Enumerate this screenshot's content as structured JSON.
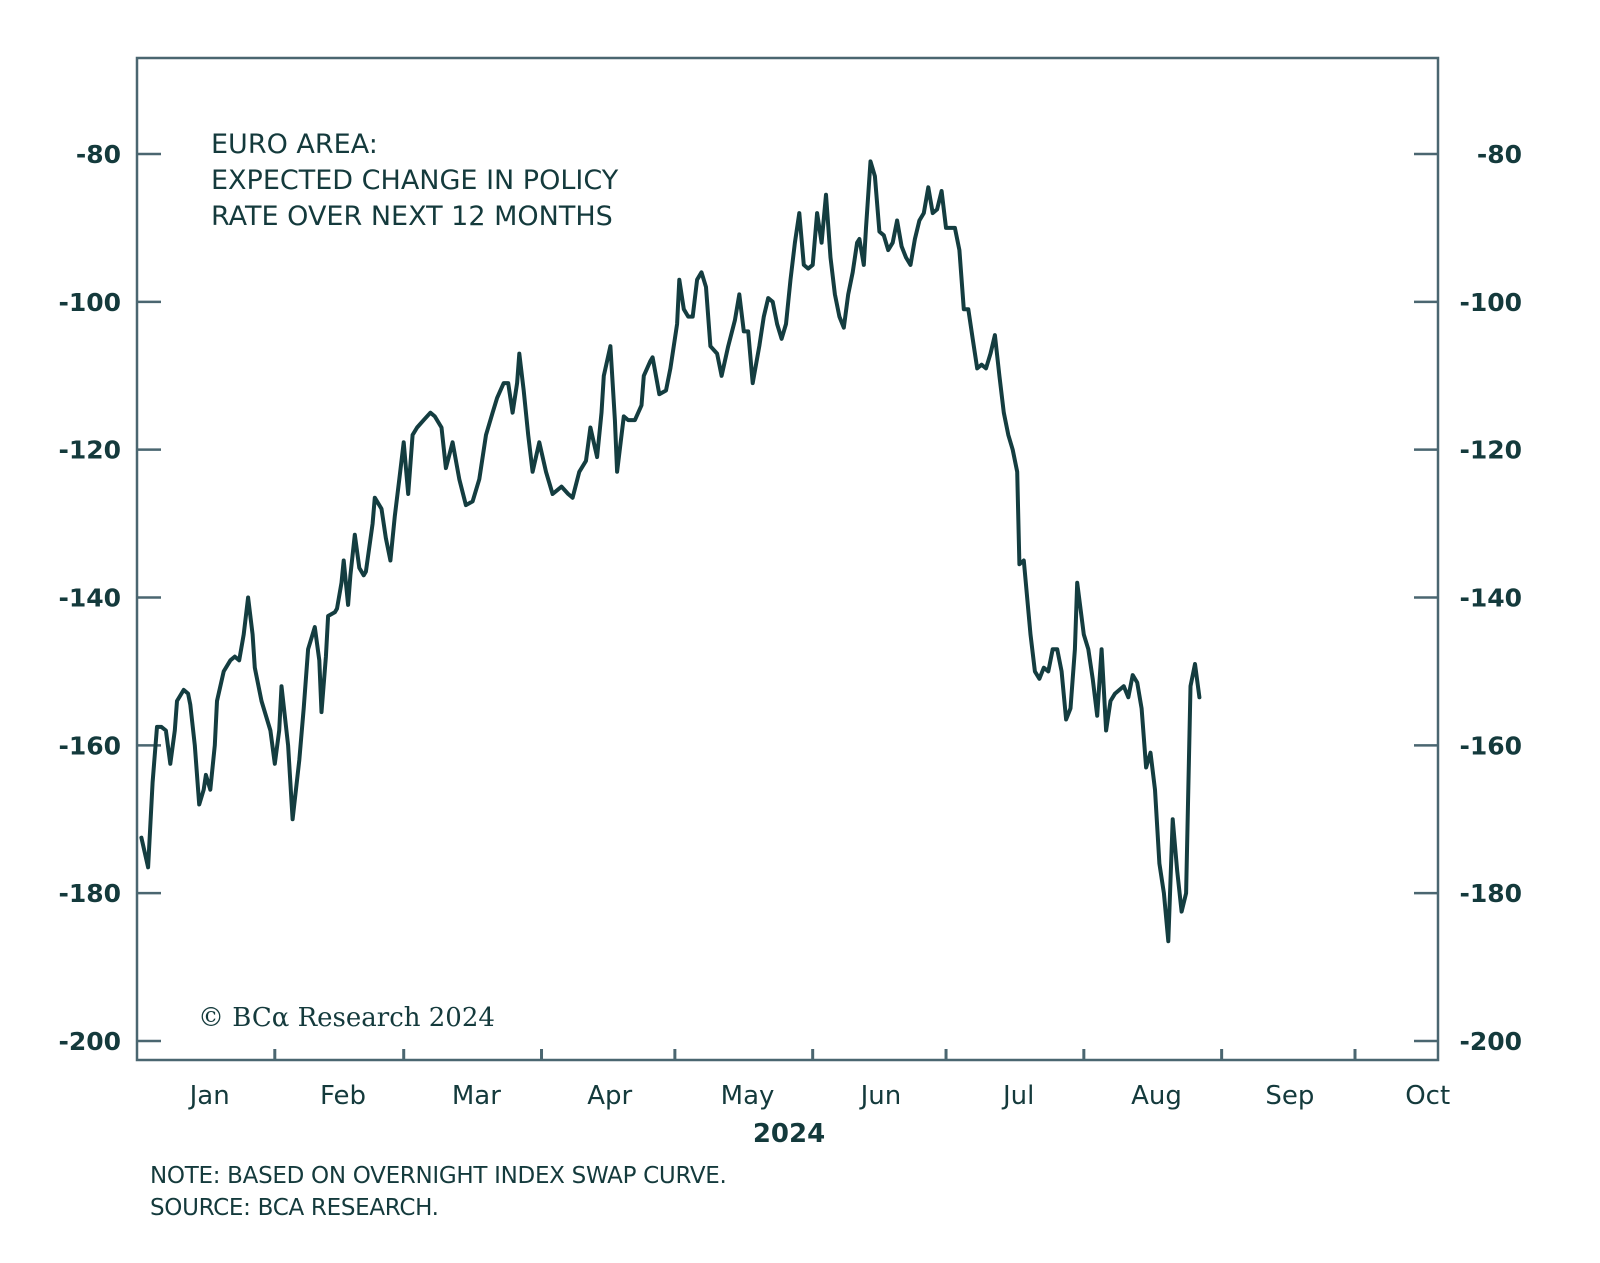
{
  "chart_data": {
    "type": "line",
    "title_lines": [
      "EURO AREA:",
      "EXPECTED CHANGE IN POLICY",
      "RATE OVER NEXT 12 MONTHS"
    ],
    "xlabel": "2024",
    "ylabel": "",
    "x_unit": "days since 2024-01-01",
    "xlim": [
      0,
      290
    ],
    "ylim": [
      -203,
      -66
    ],
    "yticks": [
      -80,
      -100,
      -120,
      -140,
      -160,
      -180,
      -200
    ],
    "ytick_labels": [
      "-80",
      "-100",
      "-120",
      "-140",
      "-160",
      "-180",
      "-200"
    ],
    "secondary_y_axis": true,
    "x_tick_days": [
      31,
      60,
      91,
      121,
      152,
      182,
      213,
      244,
      274
    ],
    "months": [
      {
        "label": "Jan",
        "day": 15
      },
      {
        "label": "Feb",
        "day": 45
      },
      {
        "label": "Mar",
        "day": 75
      },
      {
        "label": "Apr",
        "day": 105
      },
      {
        "label": "May",
        "day": 136
      },
      {
        "label": "Jun",
        "day": 166
      },
      {
        "label": "Jul",
        "day": 197
      },
      {
        "label": "Aug",
        "day": 228
      },
      {
        "label": "Sep",
        "day": 258
      },
      {
        "label": "Oct",
        "day": 289
      }
    ],
    "grid": false,
    "legend": "none",
    "line_color": "#143d40",
    "series": [
      {
        "name": "Expected change in policy rate over next 12 months (bps)",
        "points": [
          [
            1,
            -172.5
          ],
          [
            2.5,
            -176.5
          ],
          [
            3.5,
            -165
          ],
          [
            4.5,
            -157.5
          ],
          [
            5.5,
            -157.5
          ],
          [
            6.5,
            -158
          ],
          [
            7.5,
            -162.5
          ],
          [
            8.5,
            -158
          ],
          [
            9,
            -154
          ],
          [
            10.5,
            -152.5
          ],
          [
            11.5,
            -153
          ],
          [
            12,
            -154.5
          ],
          [
            13,
            -160
          ],
          [
            14,
            -168
          ],
          [
            15,
            -166
          ],
          [
            15.5,
            -164
          ],
          [
            16.5,
            -166
          ],
          [
            17.5,
            -160
          ],
          [
            18,
            -154
          ],
          [
            19.5,
            -150
          ],
          [
            21,
            -148.5
          ],
          [
            22,
            -148
          ],
          [
            23,
            -148.5
          ],
          [
            24,
            -145
          ],
          [
            25,
            -140
          ],
          [
            26,
            -145
          ],
          [
            26.5,
            -149.5
          ],
          [
            28,
            -154
          ],
          [
            30,
            -158
          ],
          [
            31,
            -162.5
          ],
          [
            32,
            -158
          ],
          [
            32.5,
            -152
          ],
          [
            34,
            -160
          ],
          [
            35,
            -170
          ],
          [
            36.5,
            -162
          ],
          [
            37.5,
            -155
          ],
          [
            38.5,
            -147
          ],
          [
            40,
            -144
          ],
          [
            41,
            -148.5
          ],
          [
            41.5,
            -155.5
          ],
          [
            42.5,
            -148
          ],
          [
            43,
            -142.5
          ],
          [
            44.5,
            -142
          ],
          [
            45,
            -141.5
          ],
          [
            46,
            -138
          ],
          [
            46.5,
            -135
          ],
          [
            47.5,
            -141
          ],
          [
            48,
            -137
          ],
          [
            49,
            -131.5
          ],
          [
            50,
            -136
          ],
          [
            51,
            -137
          ],
          [
            51.5,
            -136.5
          ],
          [
            53,
            -130
          ],
          [
            53.5,
            -126.5
          ],
          [
            55,
            -128
          ],
          [
            56,
            -132
          ],
          [
            57,
            -135
          ],
          [
            58,
            -129
          ],
          [
            59,
            -124
          ],
          [
            60,
            -119
          ],
          [
            61,
            -126
          ],
          [
            62,
            -118
          ],
          [
            63,
            -117
          ],
          [
            64.5,
            -116
          ],
          [
            66,
            -115
          ],
          [
            67,
            -115.5
          ],
          [
            68.5,
            -117
          ],
          [
            69.5,
            -122.5
          ],
          [
            71,
            -119
          ],
          [
            72.5,
            -124
          ],
          [
            74,
            -127.5
          ],
          [
            75.5,
            -127
          ],
          [
            77,
            -124
          ],
          [
            78.5,
            -118
          ],
          [
            80,
            -115
          ],
          [
            81,
            -113
          ],
          [
            82.5,
            -111
          ],
          [
            83.5,
            -111
          ],
          [
            84.5,
            -115
          ],
          [
            85.5,
            -111
          ],
          [
            86,
            -107
          ],
          [
            87,
            -112
          ],
          [
            88,
            -118
          ],
          [
            89,
            -123
          ],
          [
            90.5,
            -119
          ],
          [
            92,
            -123
          ],
          [
            93.5,
            -126
          ],
          [
            94.5,
            -125.5
          ],
          [
            95.5,
            -125
          ],
          [
            97,
            -126
          ],
          [
            98,
            -126.5
          ],
          [
            99.5,
            -123
          ],
          [
            101,
            -121.5
          ],
          [
            102,
            -117
          ],
          [
            103.5,
            -121
          ],
          [
            104.5,
            -115
          ],
          [
            105,
            -110
          ],
          [
            106.5,
            -106
          ],
          [
            107.5,
            -116
          ],
          [
            108,
            -123
          ],
          [
            109.5,
            -115.5
          ],
          [
            110.5,
            -116
          ],
          [
            112,
            -116
          ],
          [
            113.5,
            -114
          ],
          [
            114,
            -110
          ],
          [
            115.5,
            -108
          ],
          [
            116,
            -107.5
          ],
          [
            117.5,
            -112.5
          ],
          [
            119,
            -112
          ],
          [
            120,
            -109
          ],
          [
            121.5,
            -103
          ],
          [
            122,
            -97
          ],
          [
            123,
            -101
          ],
          [
            124,
            -102
          ],
          [
            125,
            -102
          ],
          [
            126,
            -97
          ],
          [
            127,
            -96
          ],
          [
            128,
            -98
          ],
          [
            129,
            -106
          ],
          [
            130.5,
            -107
          ],
          [
            131.5,
            -110
          ],
          [
            133,
            -106
          ],
          [
            134.5,
            -102.5
          ],
          [
            135.5,
            -99
          ],
          [
            136.5,
            -104
          ],
          [
            137.5,
            -104
          ],
          [
            138.5,
            -111
          ],
          [
            140,
            -106
          ],
          [
            141,
            -102
          ],
          [
            142,
            -99.5
          ],
          [
            143,
            -100
          ],
          [
            144,
            -103
          ],
          [
            145,
            -105
          ],
          [
            146,
            -103
          ],
          [
            147,
            -97
          ],
          [
            148,
            -92
          ],
          [
            149,
            -88
          ],
          [
            150,
            -95
          ],
          [
            151,
            -95.5
          ],
          [
            152,
            -95
          ],
          [
            153,
            -88
          ],
          [
            154,
            -92
          ],
          [
            155,
            -85.5
          ],
          [
            156,
            -94
          ],
          [
            157,
            -99
          ],
          [
            158,
            -102
          ],
          [
            159,
            -103.5
          ],
          [
            160,
            -99
          ],
          [
            161,
            -96
          ],
          [
            162,
            -92
          ],
          [
            162.5,
            -91.5
          ],
          [
            163.5,
            -95
          ],
          [
            164,
            -90
          ],
          [
            165,
            -81
          ],
          [
            166,
            -83
          ],
          [
            167,
            -90.5
          ],
          [
            168,
            -91
          ],
          [
            169,
            -93
          ],
          [
            170,
            -92
          ],
          [
            171,
            -89
          ],
          [
            172,
            -92.5
          ],
          [
            173,
            -94
          ],
          [
            174,
            -95
          ],
          [
            175,
            -91.5
          ],
          [
            176,
            -89
          ],
          [
            177,
            -88
          ],
          [
            178,
            -84.5
          ],
          [
            179,
            -88
          ],
          [
            180,
            -87.5
          ],
          [
            181,
            -85
          ],
          [
            182,
            -90
          ],
          [
            183,
            -90
          ],
          [
            184,
            -90
          ],
          [
            185,
            -93
          ],
          [
            186,
            -101
          ],
          [
            187,
            -101
          ],
          [
            188,
            -105
          ],
          [
            189,
            -109
          ],
          [
            190,
            -108.5
          ],
          [
            191,
            -109
          ],
          [
            192,
            -107
          ],
          [
            193,
            -104.5
          ],
          [
            194,
            -110
          ],
          [
            195,
            -115
          ],
          [
            196,
            -118
          ],
          [
            197,
            -120
          ],
          [
            198,
            -123
          ],
          [
            198.5,
            -135.5
          ],
          [
            199.5,
            -135
          ],
          [
            201,
            -145
          ],
          [
            202,
            -150
          ],
          [
            203,
            -151
          ],
          [
            204,
            -149.5
          ],
          [
            205,
            -150
          ],
          [
            206,
            -147
          ],
          [
            207,
            -147
          ],
          [
            208,
            -150
          ],
          [
            209,
            -156.5
          ],
          [
            210,
            -155
          ],
          [
            211,
            -147
          ],
          [
            211.5,
            -138
          ],
          [
            213,
            -145
          ],
          [
            214,
            -147
          ],
          [
            215,
            -151
          ],
          [
            216,
            -156
          ],
          [
            217,
            -147
          ],
          [
            218,
            -158
          ],
          [
            219,
            -154
          ],
          [
            220,
            -153
          ],
          [
            221,
            -152.5
          ],
          [
            222,
            -152
          ],
          [
            223,
            -153.5
          ],
          [
            224,
            -150.5
          ],
          [
            225,
            -151.5
          ],
          [
            226,
            -155
          ],
          [
            227,
            -163
          ],
          [
            228,
            -161
          ],
          [
            229,
            -166
          ],
          [
            230,
            -176
          ],
          [
            231,
            -180
          ],
          [
            232,
            -186.5
          ],
          [
            233,
            -170
          ],
          [
            234,
            -177
          ],
          [
            235,
            -182.5
          ],
          [
            236,
            -180
          ],
          [
            237,
            -152
          ],
          [
            238,
            -149
          ],
          [
            239,
            -153.5
          ]
        ]
      }
    ]
  },
  "watermark": "© BCα Research 2024",
  "footer": {
    "note": "NOTE: BASED ON OVERNIGHT INDEX SWAP CURVE.",
    "source": "SOURCE: BCA RESEARCH."
  }
}
